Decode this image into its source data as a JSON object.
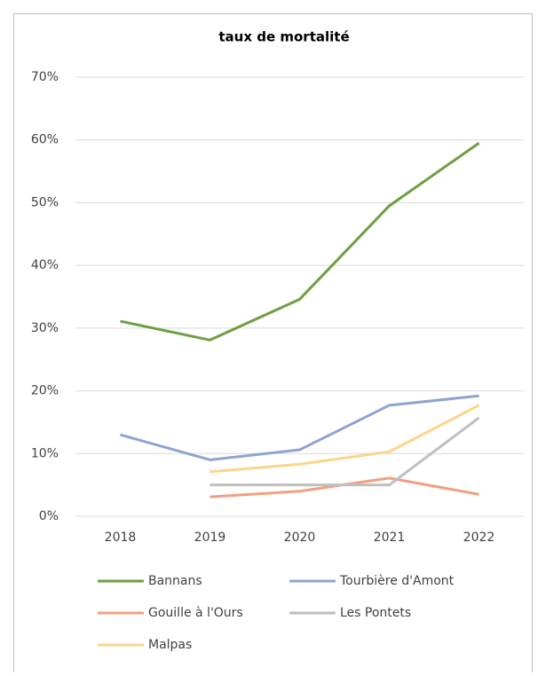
{
  "chart_data": {
    "type": "line",
    "title": "taux de mortalité",
    "categories": [
      "2018",
      "2019",
      "2020",
      "2021",
      "2022"
    ],
    "series": [
      {
        "name": "Bannans",
        "color": "#6d9f42",
        "values": [
          31.1,
          28.1,
          34.6,
          49.5,
          59.5
        ]
      },
      {
        "name": "Tourbière d'Amont",
        "color": "#8fa3d3",
        "values": [
          13.0,
          9.0,
          10.6,
          17.7,
          19.2
        ]
      },
      {
        "name": "Gouille à l'Ours",
        "color": "#f0a080",
        "values": [
          null,
          3.1,
          4.0,
          6.1,
          3.5
        ]
      },
      {
        "name": "Les Pontets",
        "color": "#bfbfbf",
        "values": [
          null,
          5.0,
          5.0,
          5.0,
          15.7
        ]
      },
      {
        "name": "Malpas",
        "color": "#fdd48a",
        "values": [
          null,
          7.1,
          8.3,
          10.3,
          17.7
        ]
      }
    ],
    "ylim": [
      0,
      70
    ],
    "yticks": [
      {
        "value": 0,
        "label": "0%"
      },
      {
        "value": 10,
        "label": "10%"
      },
      {
        "value": 20,
        "label": "20%"
      },
      {
        "value": 30,
        "label": "30%"
      },
      {
        "value": 40,
        "label": "40%"
      },
      {
        "value": 50,
        "label": "50%"
      },
      {
        "value": 60,
        "label": "60%"
      },
      {
        "value": 70,
        "label": "70%"
      }
    ],
    "grid": true,
    "legend": "bottom"
  }
}
